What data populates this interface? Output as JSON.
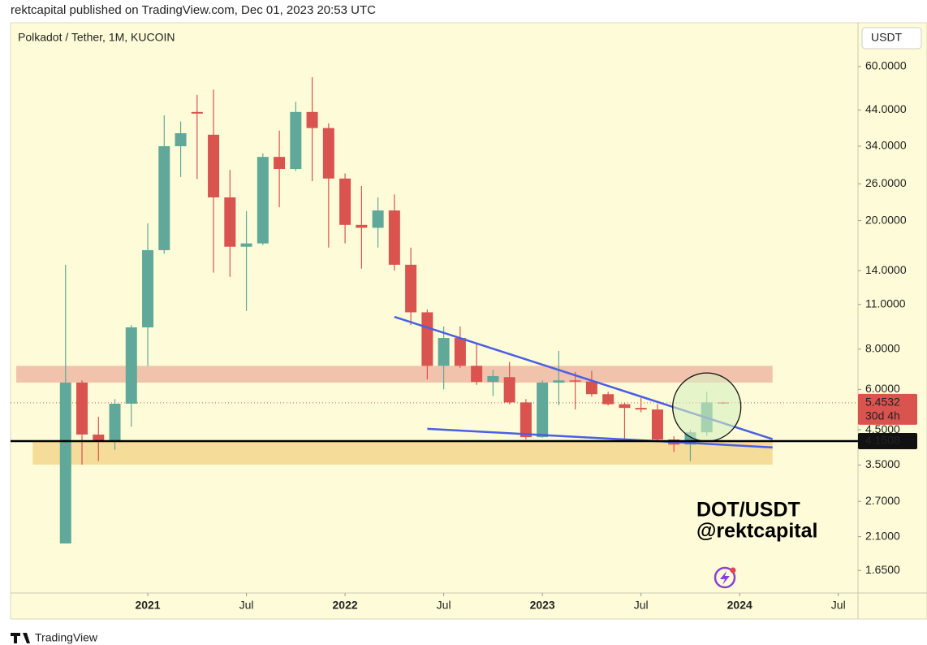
{
  "header": "rektcapital published on TradingView.com, Dec 01, 2023 20:53 UTC",
  "footer": "TradingView",
  "chart_data": {
    "type": "candlestick",
    "title": "Polkadot / Tether, 1M, KUCOIN",
    "currency": "USDT",
    "log_scale": true,
    "up_color": "#5fa89a",
    "down_color": "#d9534f",
    "x": [
      "2020-08",
      "2020-09",
      "2020-10",
      "2020-11",
      "2020-12",
      "2021-01",
      "2021-02",
      "2021-03",
      "2021-04",
      "2021-05",
      "2021-06",
      "2021-07",
      "2021-08",
      "2021-09",
      "2021-10",
      "2021-11",
      "2021-12",
      "2022-01",
      "2022-02",
      "2022-03",
      "2022-04",
      "2022-05",
      "2022-06",
      "2022-07",
      "2022-08",
      "2022-09",
      "2022-10",
      "2022-11",
      "2022-12",
      "2023-01",
      "2023-02",
      "2023-03",
      "2023-04",
      "2023-05",
      "2023-06",
      "2023-07",
      "2023-08",
      "2023-09",
      "2023-10",
      "2023-11",
      "2023-12"
    ],
    "open": [
      2.0,
      6.3,
      4.35,
      4.15,
      5.42,
      9.34,
      16.2,
      34,
      43.4,
      36.9,
      23.6,
      16.6,
      17,
      31.5,
      28.9,
      43.4,
      38.7,
      27,
      19.4,
      19,
      21.5,
      14.6,
      10.4,
      7.1,
      8.66,
      7.1,
      6.33,
      6.55,
      5.47,
      4.27,
      6.3,
      6.4,
      6.35,
      5.8,
      5.4,
      5.26,
      5.2,
      4.2,
      4.05,
      4.42,
      5.47
    ],
    "high": [
      14.6,
      6.4,
      4.94,
      5.6,
      9.5,
      19.6,
      42.4,
      40.5,
      49,
      50.9,
      28.7,
      21.4,
      32.3,
      38,
      46.7,
      55.6,
      40,
      28,
      25.6,
      23.6,
      24.1,
      16.5,
      10.6,
      9.4,
      9.4,
      8.3,
      6.9,
      7.3,
      5.6,
      6.4,
      7.9,
      6.8,
      6.85,
      5.9,
      5.45,
      5.65,
      5.4,
      4.3,
      4.5,
      5.9,
      5.5
    ],
    "low": [
      2.0,
      3.51,
      3.6,
      3.9,
      4.6,
      7.1,
      15.8,
      27.3,
      26.9,
      13.8,
      13.4,
      10.5,
      16.8,
      22,
      28.5,
      26.5,
      16.5,
      17,
      14.2,
      16.5,
      14,
      9.5,
      6.44,
      6.0,
      7.0,
      6.2,
      5.72,
      5.4,
      4.2,
      4.25,
      5.36,
      5.2,
      5.7,
      5.35,
      4.17,
      5.1,
      4.15,
      3.84,
      3.6,
      4.3,
      5.4
    ],
    "close": [
      6.3,
      4.35,
      4.15,
      5.42,
      9.34,
      16.2,
      34,
      37.3,
      42.9,
      23.6,
      16.6,
      17,
      31.5,
      28.9,
      43.4,
      38.7,
      27,
      19.4,
      19,
      21.5,
      14.6,
      10.4,
      7.1,
      8.66,
      7.1,
      6.33,
      6.6,
      5.47,
      4.27,
      6.3,
      6.4,
      6.35,
      5.8,
      5.4,
      5.26,
      5.2,
      4.2,
      4.05,
      4.42,
      5.47,
      5.4532
    ],
    "xlim": [
      "2020-05",
      "2024-08"
    ],
    "xticks": [
      {
        "value": "2021-01",
        "label": "2021"
      },
      {
        "value": "2021-07",
        "label": "Jul"
      },
      {
        "value": "2022-01",
        "label": "2022"
      },
      {
        "value": "2022-07",
        "label": "Jul"
      },
      {
        "value": "2023-01",
        "label": "2023"
      },
      {
        "value": "2023-07",
        "label": "Jul"
      },
      {
        "value": "2024-01",
        "label": "2024"
      },
      {
        "value": "2024-07",
        "label": "Jul"
      }
    ],
    "ylim": [
      1.405,
      82
    ],
    "yticks": [
      {
        "value": 60,
        "label": "60.0000"
      },
      {
        "value": 44,
        "label": "44.0000"
      },
      {
        "value": 34,
        "label": "34.0000"
      },
      {
        "value": 26,
        "label": "26.0000"
      },
      {
        "value": 20,
        "label": "20.0000"
      },
      {
        "value": 14,
        "label": "14.0000"
      },
      {
        "value": 11,
        "label": "11.0000"
      },
      {
        "value": 8,
        "label": "8.0000"
      },
      {
        "value": 6,
        "label": "6.0000"
      },
      {
        "value": 4.5,
        "label": "4.5000"
      },
      {
        "value": 3.5,
        "label": "3.5000"
      },
      {
        "value": 2.7,
        "label": "2.7000"
      },
      {
        "value": 2.1,
        "label": "2.1000"
      },
      {
        "value": 1.65,
        "label": "1.6500"
      }
    ],
    "zones": [
      {
        "x": [
          "2020-05",
          "2024-03"
        ],
        "y": [
          6.3,
          7.1
        ],
        "color": "#efb8a4"
      },
      {
        "x": [
          "2020-06",
          "2024-03"
        ],
        "y": [
          3.51,
          4.14
        ],
        "color": "#f5d68e"
      }
    ],
    "trendlines": [
      {
        "x": [
          "2022-04",
          "2024-03"
        ],
        "y": [
          10.07,
          4.21
        ],
        "color": "#4a5ee6"
      },
      {
        "x": [
          "2022-06",
          "2024-03"
        ],
        "y": [
          4.53,
          3.97
        ],
        "color": "#4a5ee6"
      }
    ],
    "highlight": {
      "x": "2023-11",
      "y": 5.29,
      "color": "#d6eec0"
    },
    "last_price": 5.4532,
    "countdown": "30d 4h",
    "hline": 4.1508,
    "annotations": [
      "DOT/USDT",
      "@rektcapital"
    ]
  }
}
